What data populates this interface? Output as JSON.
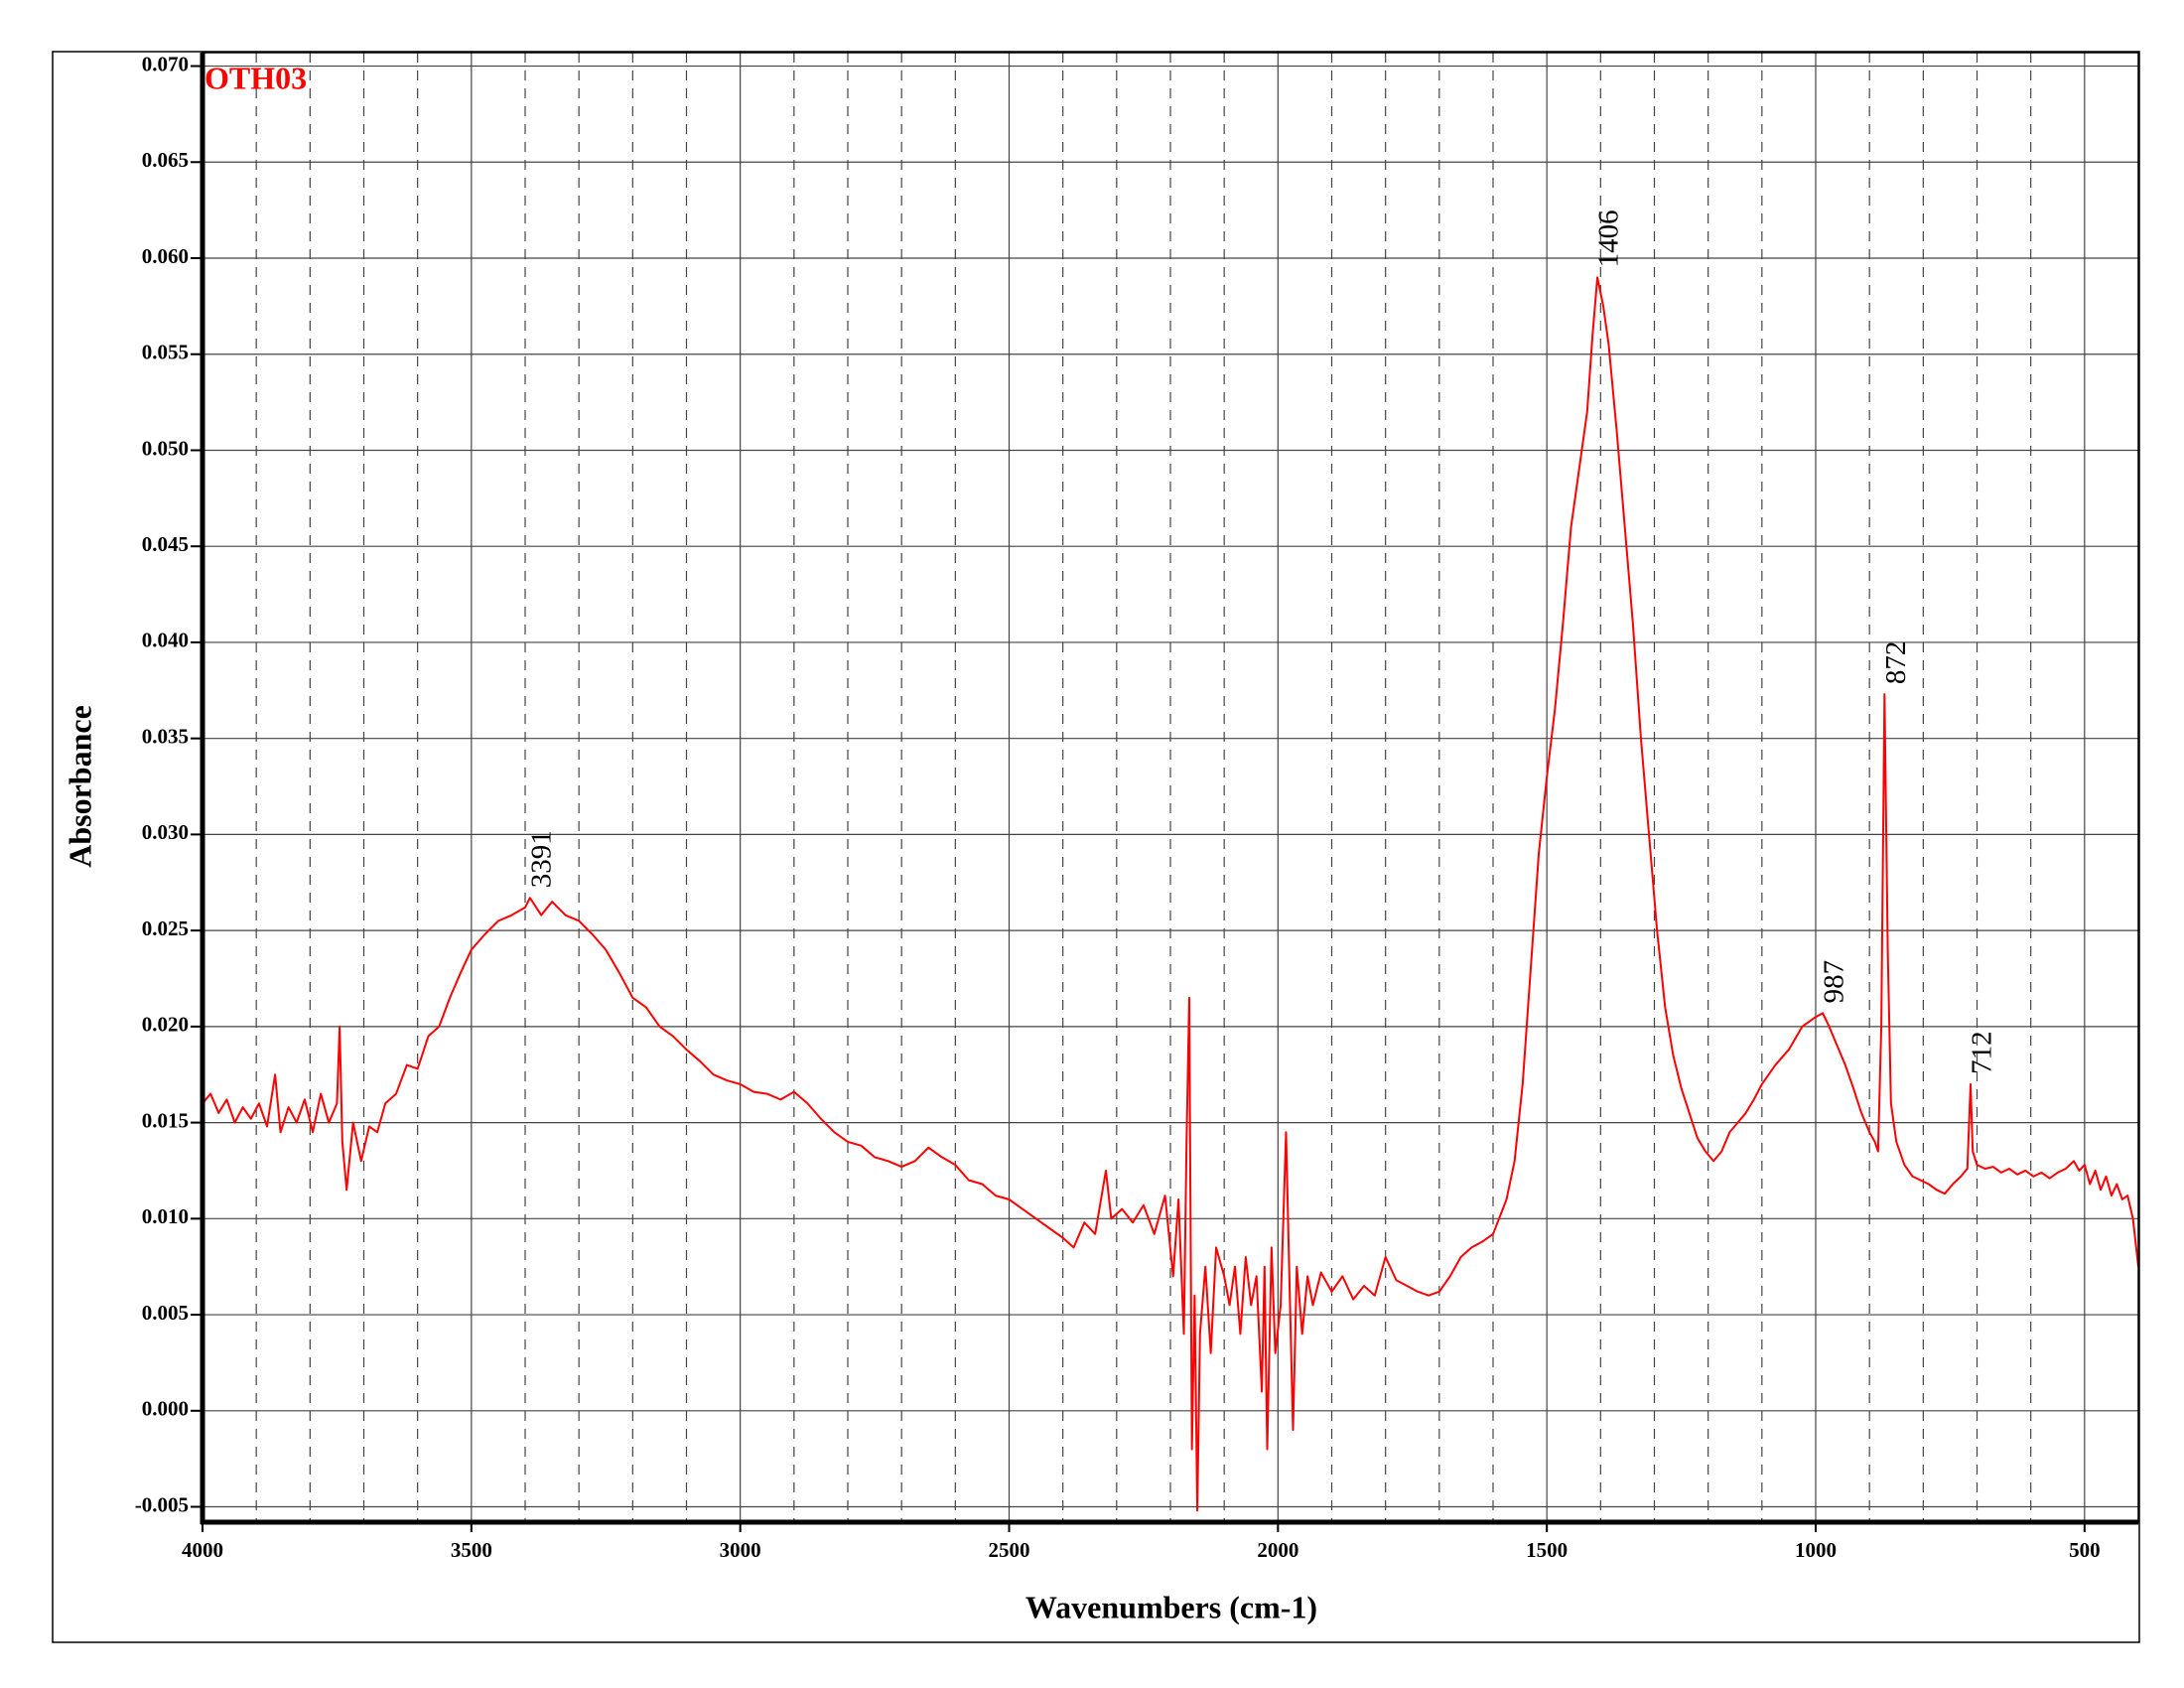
{
  "chart_data": {
    "type": "line",
    "x_label": "Wavenumbers (cm-1)",
    "y_label": "Absorbance",
    "xlim": [
      4000,
      400
    ],
    "ylim": [
      -0.0058,
      0.0707
    ],
    "xticks": [
      4000,
      3500,
      3000,
      2500,
      2000,
      1500,
      1000,
      500
    ],
    "xminor_ticks": [
      3900,
      3800,
      3700,
      3600,
      3400,
      3300,
      3200,
      3100,
      2900,
      2800,
      2700,
      2600,
      2400,
      2300,
      2200,
      2100,
      1900,
      1800,
      1700,
      1600,
      1400,
      1300,
      1200,
      1100,
      900,
      800,
      700,
      600
    ],
    "yticks": [
      {
        "value": -0.005,
        "label": "-0.005"
      },
      {
        "value": 0,
        "label": "0.000"
      },
      {
        "value": 0.005,
        "label": "0.005"
      },
      {
        "value": 0.01,
        "label": "0.010"
      },
      {
        "value": 0.015,
        "label": "0.015"
      },
      {
        "value": 0.02,
        "label": "0.020"
      },
      {
        "value": 0.025,
        "label": "0.025"
      },
      {
        "value": 0.03,
        "label": "0.030"
      },
      {
        "value": 0.035,
        "label": "0.035"
      },
      {
        "value": 0.04,
        "label": "0.040"
      },
      {
        "value": 0.045,
        "label": "0.045"
      },
      {
        "value": 0.05,
        "label": "0.050"
      },
      {
        "value": 0.055,
        "label": "0.055"
      },
      {
        "value": 0.06,
        "label": "0.060"
      },
      {
        "value": 0.065,
        "label": "0.065"
      },
      {
        "value": 0.07,
        "label": "0.070"
      }
    ],
    "grid": true,
    "peak_labels": [
      3391,
      1406,
      987,
      872,
      712
    ],
    "x": [
      4000,
      3985,
      3970,
      3955,
      3940,
      3925,
      3910,
      3895,
      3880,
      3865,
      3855,
      3840,
      3825,
      3810,
      3795,
      3780,
      3765,
      3750,
      3745,
      3740,
      3732,
      3720,
      3705,
      3690,
      3675,
      3660,
      3640,
      3620,
      3600,
      3580,
      3560,
      3540,
      3520,
      3500,
      3475,
      3450,
      3425,
      3400,
      3391,
      3370,
      3350,
      3325,
      3300,
      3275,
      3250,
      3225,
      3200,
      3175,
      3150,
      3125,
      3100,
      3075,
      3050,
      3025,
      3000,
      2975,
      2950,
      2925,
      2900,
      2875,
      2850,
      2825,
      2800,
      2775,
      2750,
      2725,
      2700,
      2675,
      2650,
      2625,
      2600,
      2575,
      2550,
      2525,
      2500,
      2475,
      2450,
      2425,
      2400,
      2380,
      2360,
      2340,
      2320,
      2310,
      2290,
      2270,
      2250,
      2230,
      2210,
      2195,
      2185,
      2175,
      2170,
      2165,
      2160,
      2155,
      2150,
      2145,
      2135,
      2125,
      2115,
      2100,
      2090,
      2080,
      2070,
      2060,
      2050,
      2040,
      2030,
      2025,
      2020,
      2012,
      2005,
      1995,
      1985,
      1978,
      1972,
      1965,
      1955,
      1945,
      1935,
      1920,
      1900,
      1880,
      1860,
      1840,
      1820,
      1800,
      1780,
      1760,
      1740,
      1720,
      1700,
      1680,
      1660,
      1640,
      1620,
      1600,
      1575,
      1560,
      1545,
      1530,
      1515,
      1500,
      1485,
      1470,
      1455,
      1440,
      1425,
      1415,
      1406,
      1395,
      1385,
      1370,
      1355,
      1340,
      1325,
      1310,
      1295,
      1280,
      1265,
      1250,
      1235,
      1220,
      1205,
      1190,
      1175,
      1160,
      1145,
      1130,
      1115,
      1100,
      1075,
      1050,
      1025,
      1000,
      987,
      975,
      960,
      945,
      930,
      915,
      900,
      890,
      884,
      878,
      872,
      866,
      860,
      850,
      835,
      820,
      805,
      790,
      775,
      760,
      745,
      730,
      718,
      712,
      708,
      700,
      685,
      670,
      655,
      640,
      625,
      610,
      595,
      580,
      565,
      550,
      535,
      520,
      510,
      500,
      490,
      480,
      470,
      460,
      450,
      440,
      430,
      420,
      410,
      400
    ],
    "series": [
      {
        "name": "OTH03",
        "color": "#ff0000",
        "values": [
          0.016,
          0.0165,
          0.0155,
          0.0162,
          0.015,
          0.0158,
          0.0152,
          0.016,
          0.0148,
          0.0175,
          0.0145,
          0.0158,
          0.015,
          0.0162,
          0.0145,
          0.0165,
          0.015,
          0.016,
          0.02,
          0.014,
          0.0115,
          0.015,
          0.013,
          0.0148,
          0.0145,
          0.016,
          0.0165,
          0.018,
          0.0178,
          0.0195,
          0.02,
          0.0215,
          0.0228,
          0.024,
          0.0248,
          0.0255,
          0.0258,
          0.0262,
          0.0267,
          0.0258,
          0.0265,
          0.0258,
          0.0255,
          0.0248,
          0.024,
          0.0228,
          0.0215,
          0.021,
          0.02,
          0.0195,
          0.0188,
          0.0182,
          0.0175,
          0.0172,
          0.017,
          0.0166,
          0.0165,
          0.0162,
          0.0166,
          0.016,
          0.0152,
          0.0145,
          0.014,
          0.0138,
          0.0132,
          0.013,
          0.0127,
          0.013,
          0.0137,
          0.0132,
          0.0128,
          0.012,
          0.0118,
          0.0112,
          0.011,
          0.0105,
          0.01,
          0.0095,
          0.009,
          0.0085,
          0.0098,
          0.0092,
          0.0125,
          0.01,
          0.0105,
          0.0098,
          0.0107,
          0.0092,
          0.0112,
          0.007,
          0.011,
          0.004,
          0.014,
          0.0215,
          -0.002,
          0.006,
          -0.0052,
          0.004,
          0.0075,
          0.003,
          0.0085,
          0.007,
          0.0055,
          0.0075,
          0.004,
          0.008,
          0.0055,
          0.007,
          0.001,
          0.0075,
          -0.002,
          0.0085,
          0.003,
          0.0055,
          0.0145,
          0.006,
          -0.001,
          0.0075,
          0.004,
          0.007,
          0.0055,
          0.0072,
          0.0062,
          0.007,
          0.0058,
          0.0065,
          0.006,
          0.008,
          0.0068,
          0.0065,
          0.0062,
          0.006,
          0.0062,
          0.007,
          0.008,
          0.0085,
          0.0088,
          0.0092,
          0.011,
          0.013,
          0.017,
          0.023,
          0.029,
          0.033,
          0.0365,
          0.041,
          0.046,
          0.049,
          0.052,
          0.056,
          0.059,
          0.0575,
          0.0555,
          0.051,
          0.046,
          0.041,
          0.035,
          0.03,
          0.025,
          0.021,
          0.0185,
          0.0168,
          0.0155,
          0.0142,
          0.0135,
          0.013,
          0.0135,
          0.0145,
          0.015,
          0.0155,
          0.0162,
          0.017,
          0.018,
          0.0188,
          0.02,
          0.0205,
          0.0207,
          0.02,
          0.019,
          0.018,
          0.0168,
          0.0155,
          0.0145,
          0.014,
          0.0135,
          0.02,
          0.0373,
          0.024,
          0.016,
          0.014,
          0.0128,
          0.0122,
          0.012,
          0.0118,
          0.0115,
          0.0113,
          0.0118,
          0.0122,
          0.0126,
          0.017,
          0.0135,
          0.0128,
          0.0126,
          0.0127,
          0.0124,
          0.0126,
          0.0123,
          0.0125,
          0.0122,
          0.0124,
          0.0121,
          0.0124,
          0.0126,
          0.013,
          0.0125,
          0.0128,
          0.0118,
          0.0125,
          0.0115,
          0.0122,
          0.0112,
          0.0118,
          0.011,
          0.0112,
          0.01,
          0.0075
        ]
      }
    ]
  }
}
